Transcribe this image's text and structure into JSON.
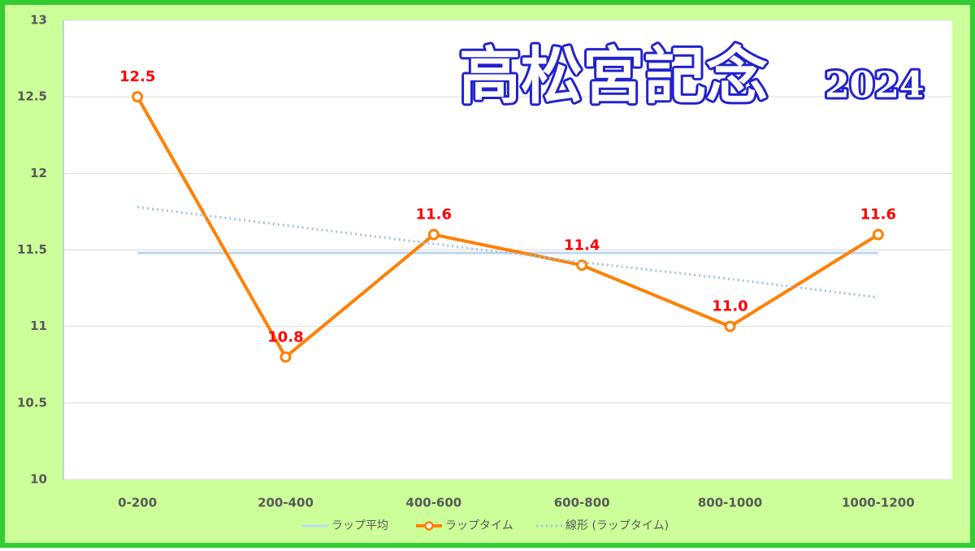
{
  "chart_data": {
    "type": "line",
    "title": "高松宮記念",
    "subtitle": "2024",
    "categories": [
      "0-200",
      "200-400",
      "400-600",
      "600-800",
      "800-1000",
      "1000-1200"
    ],
    "series": [
      {
        "name": "ラップ平均",
        "color": "#bdd7ee",
        "style": "solid",
        "values": [
          11.48,
          11.48,
          11.48,
          11.48,
          11.48,
          11.48
        ]
      },
      {
        "name": "ラップタイム",
        "color": "#ff8000",
        "style": "solid",
        "markers": true,
        "label_color": "#ff0000",
        "values": [
          12.5,
          10.8,
          11.6,
          11.4,
          11.0,
          11.6
        ],
        "value_labels": [
          "12.5",
          "10.8",
          "11.6",
          "11.4",
          "11.0",
          "11.6"
        ]
      },
      {
        "name": "線形 (ラップタイム)",
        "color": "#9dc3e6",
        "style": "dotted",
        "values": [
          11.78,
          11.66,
          11.54,
          11.42,
          11.31,
          11.19
        ]
      }
    ],
    "ylim": [
      10,
      13
    ],
    "yticks": [
      10,
      10.5,
      11,
      11.5,
      12,
      12.5,
      13
    ],
    "grid": true,
    "legend": "bottom"
  }
}
